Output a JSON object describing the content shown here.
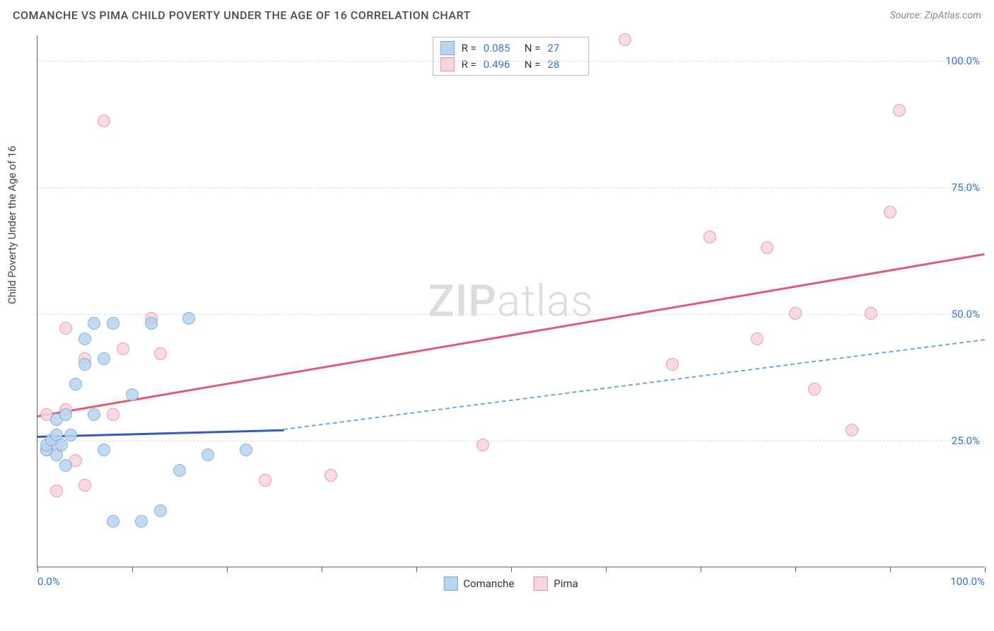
{
  "header": {
    "title": "COMANCHE VS PIMA CHILD POVERTY UNDER THE AGE OF 16 CORRELATION CHART",
    "source": "Source: ZipAtlas.com"
  },
  "chart": {
    "type": "scatter",
    "ylabel": "Child Poverty Under the Age of 16",
    "xlim": [
      0,
      100
    ],
    "ylim": [
      0,
      105
    ],
    "ytick_positions": [
      25,
      50,
      75,
      100
    ],
    "ytick_labels": [
      "25.0%",
      "50.0%",
      "75.0%",
      "100.0%"
    ],
    "xtick_positions": [
      0,
      10,
      20,
      30,
      40,
      50,
      60,
      70,
      80,
      90,
      100
    ],
    "xtick_labels_shown": {
      "0": "0.0%",
      "100": "100.0%"
    },
    "grid_color": "#dddddd",
    "axis_color": "#666666",
    "background_color": "#ffffff",
    "value_color": "#3972c4",
    "watermark": {
      "zip": "ZIP",
      "atlas": "atlas"
    }
  },
  "legendStats": [
    {
      "r_label": "R =",
      "r": "0.085",
      "n_label": "N =",
      "n": "27",
      "color_key": "comanche"
    },
    {
      "r_label": "R =",
      "r": "0.496",
      "n_label": "N =",
      "n": "28",
      "color_key": "pima"
    }
  ],
  "bottomLegend": [
    {
      "label": "Comanche",
      "color_key": "comanche"
    },
    {
      "label": "Pima",
      "color_key": "pima"
    }
  ],
  "series": {
    "comanche": {
      "fill": "#b8d4ee",
      "stroke": "#6fa7dc",
      "line_color": "#2f5fb8",
      "dash_color": "#6fa7dc",
      "points": [
        [
          1,
          23
        ],
        [
          1,
          24
        ],
        [
          1.5,
          25
        ],
        [
          2,
          22
        ],
        [
          2,
          26
        ],
        [
          2,
          29
        ],
        [
          2.5,
          24
        ],
        [
          3,
          20
        ],
        [
          3,
          30
        ],
        [
          3.5,
          26
        ],
        [
          4,
          36
        ],
        [
          5,
          40
        ],
        [
          5,
          45
        ],
        [
          6,
          30
        ],
        [
          6,
          48
        ],
        [
          7,
          23
        ],
        [
          7,
          41
        ],
        [
          8,
          48
        ],
        [
          8,
          9
        ],
        [
          10,
          34
        ],
        [
          11,
          9
        ],
        [
          12,
          48
        ],
        [
          13,
          11
        ],
        [
          15,
          19
        ],
        [
          16,
          49
        ],
        [
          18,
          22
        ],
        [
          22,
          23
        ]
      ],
      "trend": {
        "x1": 0,
        "y1": 26,
        "x2_solid": 26,
        "y2_solid": 27.3,
        "x2_dash": 100,
        "y2_dash": 45
      }
    },
    "pima": {
      "fill": "#f9d4db",
      "stroke": "#e58ca0",
      "line_color": "#e25a78",
      "points": [
        [
          1,
          30
        ],
        [
          1,
          23
        ],
        [
          2,
          15
        ],
        [
          2,
          24
        ],
        [
          3,
          47
        ],
        [
          3,
          31
        ],
        [
          4,
          21
        ],
        [
          5,
          16
        ],
        [
          5,
          41
        ],
        [
          7,
          88
        ],
        [
          8,
          30
        ],
        [
          9,
          43
        ],
        [
          12,
          49
        ],
        [
          13,
          42
        ],
        [
          24,
          17
        ],
        [
          31,
          18
        ],
        [
          47,
          24
        ],
        [
          62,
          104
        ],
        [
          67,
          40
        ],
        [
          71,
          65
        ],
        [
          76,
          45
        ],
        [
          77,
          63
        ],
        [
          80,
          50
        ],
        [
          82,
          35
        ],
        [
          86,
          27
        ],
        [
          88,
          50
        ],
        [
          90,
          70
        ],
        [
          91,
          90
        ]
      ],
      "trend": {
        "x1": 0,
        "y1": 30,
        "x2": 100,
        "y2": 62
      }
    }
  }
}
